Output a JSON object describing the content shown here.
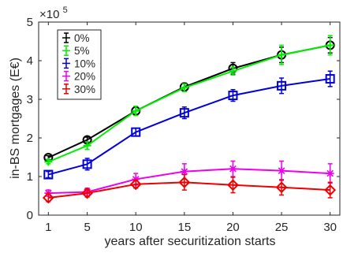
{
  "chart_data": {
    "type": "line",
    "xlabel": "years after securitization starts",
    "ylabel": "in-BS mortgages (E€)",
    "y_exponent_label": "×10",
    "y_exponent_power": "5",
    "y_multiplier": 100000,
    "x": [
      1,
      5,
      10,
      15,
      20,
      25,
      30
    ],
    "x_ticks": [
      1,
      5,
      10,
      15,
      20,
      25,
      30
    ],
    "x_tick_labels": [
      "1",
      "5",
      "10",
      "15",
      "20",
      "25",
      "30"
    ],
    "xlim": [
      0,
      31
    ],
    "y_ticks": [
      0,
      1,
      2,
      3,
      4,
      5
    ],
    "y_tick_labels": [
      "0",
      "1",
      "2",
      "3",
      "4",
      "5"
    ],
    "ylim": [
      0,
      5
    ],
    "grid": false,
    "legend_position": "top-left",
    "series": [
      {
        "name": "0%",
        "color": "#000000",
        "marker": "circle",
        "values": [
          1.49,
          1.95,
          2.7,
          3.32,
          3.8,
          4.15,
          4.4
        ],
        "errors": [
          0.05,
          0.07,
          0.1,
          0.1,
          0.15,
          0.2,
          0.2
        ]
      },
      {
        "name": "5%",
        "color": "#00ee00",
        "marker": "plus",
        "values": [
          1.38,
          1.8,
          2.7,
          3.3,
          3.73,
          4.15,
          4.4
        ],
        "errors": [
          0.05,
          0.1,
          0.12,
          0.1,
          0.1,
          0.25,
          0.25
        ]
      },
      {
        "name": "10%",
        "color": "#0000dd",
        "marker": "square",
        "values": [
          1.05,
          1.32,
          2.15,
          2.65,
          3.1,
          3.35,
          3.53
        ],
        "errors": [
          0.08,
          0.15,
          0.1,
          0.15,
          0.15,
          0.2,
          0.2
        ]
      },
      {
        "name": "20%",
        "color": "#ee00ee",
        "marker": "asterisk",
        "values": [
          0.57,
          0.6,
          0.93,
          1.13,
          1.2,
          1.15,
          1.08
        ],
        "errors": [
          0.08,
          0.1,
          0.15,
          0.2,
          0.2,
          0.25,
          0.25
        ]
      },
      {
        "name": "30%",
        "color": "#ee0000",
        "marker": "diamond",
        "values": [
          0.45,
          0.57,
          0.8,
          0.85,
          0.78,
          0.72,
          0.65
        ],
        "errors": [
          0.1,
          0.1,
          0.1,
          0.2,
          0.2,
          0.2,
          0.2
        ]
      }
    ]
  }
}
